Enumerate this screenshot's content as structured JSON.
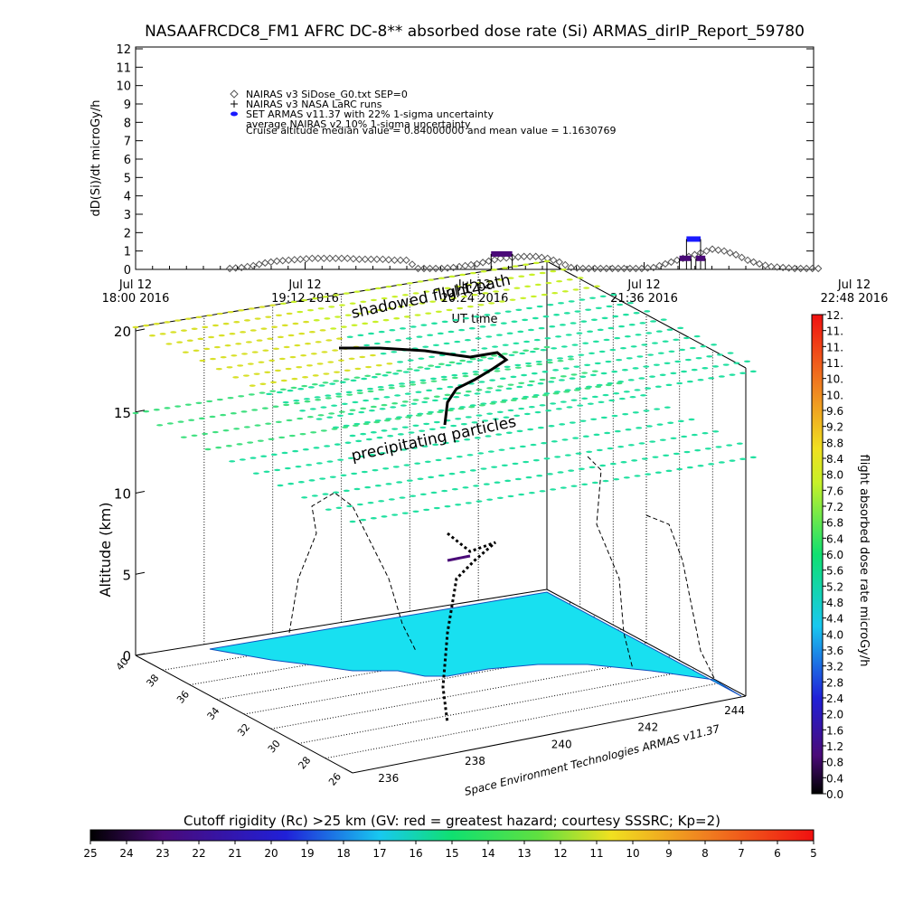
{
  "title": "NASAAFRCDC8_FM1 AFRC DC-8** absorbed dose rate (Si) ARMAS_dirIP_Report_59780",
  "chart_data": [
    {
      "type": "line",
      "panel": "top time series",
      "ylabel": "dD(Si)/dt microGy/h",
      "xlabel": "UT time",
      "ylim": [
        0,
        12
      ],
      "y_ticks": [
        "0",
        "1",
        "2",
        "3",
        "4",
        "5",
        "6",
        "7",
        "8",
        "9",
        "10",
        "11",
        "12"
      ],
      "x_ticks": [
        {
          "line1": "Jul 12",
          "line2": "18:00 2016"
        },
        {
          "line1": "Jul 12",
          "line2": "19:12 2016"
        },
        {
          "line1": "Jul 12",
          "line2": "20:24 2016"
        },
        {
          "line1": "Jul 12",
          "line2": "21:36 2016"
        },
        {
          "line1": "Jul 12",
          "line2": "22:48 2016"
        }
      ],
      "legend": [
        {
          "label": "NAIRAS v3 SiDose_G0.txt SEP=0",
          "symbol": "diamond",
          "color": "#555555"
        },
        {
          "label": "NAIRAS v3 NASA LaRC runs",
          "symbol": "plus",
          "color": "#000000"
        },
        {
          "label": "SET ARMAS v11.37 with 22% 1-sigma uncertainty",
          "symbol": "dot",
          "color": "#1a1aff"
        },
        {
          "label": "average NAIRAS v2 10% 1-sigma uncertainty",
          "symbol": "none",
          "color": "#000000"
        }
      ],
      "annotation": "Cruise altitude median value = 0.84000000 and mean value = 1.1630769",
      "series": [
        {
          "name": "NAIRAS v3 SiDose_G0.txt SEP=0",
          "x_minutes_after_1800": [
            40,
            45,
            50,
            55,
            60,
            65,
            70,
            75,
            80,
            85,
            90,
            95,
            100,
            105,
            110,
            115,
            120,
            125,
            130,
            135,
            140,
            145,
            150,
            155,
            160,
            165,
            170,
            175,
            180,
            185,
            190,
            195,
            200,
            205,
            210,
            215,
            220,
            225,
            230,
            235,
            240,
            245,
            250,
            255,
            260,
            265,
            270,
            275,
            280,
            285,
            290
          ],
          "values": [
            0.05,
            0.1,
            0.2,
            0.35,
            0.45,
            0.5,
            0.55,
            0.6,
            0.6,
            0.6,
            0.6,
            0.55,
            0.55,
            0.55,
            0.5,
            0.5,
            0.05,
            0.05,
            0.05,
            0.1,
            0.2,
            0.3,
            0.45,
            0.6,
            0.65,
            0.7,
            0.7,
            0.6,
            0.4,
            0.1,
            0.05,
            0.05,
            0.05,
            0.05,
            0.05,
            0.05,
            0.1,
            0.3,
            0.5,
            0.7,
            0.9,
            1.1,
            1.0,
            0.8,
            0.5,
            0.3,
            0.15,
            0.1,
            0.05,
            0.05,
            0.05
          ]
        },
        {
          "name": "SET ARMAS v11.37 with 22% 1-sigma uncertainty",
          "segments": [
            {
              "x_start": 151,
              "x_end": 160,
              "value": 0.84
            },
            {
              "x_start": 234,
              "x_end": 240,
              "value": 1.65
            },
            {
              "x_start": 231,
              "x_end": 236,
              "value": 0.6
            },
            {
              "x_start": 238,
              "x_end": 242,
              "value": 0.6
            }
          ]
        }
      ]
    },
    {
      "type": "scatter",
      "panel": "3D flight path with cutoff rigidity",
      "zlabel": "Altitude (km)",
      "z_ticks": [
        "0",
        "5",
        "10",
        "15",
        "20"
      ],
      "lat_ticks": [
        "40",
        "38",
        "36",
        "34",
        "32",
        "30",
        "28",
        "26"
      ],
      "lon_ticks": [
        "236",
        "238",
        "240",
        "242",
        "244"
      ],
      "annotations": [
        "shadowed flight path",
        "precipitating particles",
        "Jul 12"
      ],
      "credit": "Space Environment Technologies ARMAS v11.37"
    }
  ],
  "colorbar_right": {
    "label": "flight absorbed dose rate microGy/h",
    "ticks": [
      "0.0",
      "0.4",
      "0.8",
      "1.2",
      "1.6",
      "2.0",
      "2.4",
      "2.8",
      "3.2",
      "3.6",
      "4.0",
      "4.4",
      "4.8",
      "5.2",
      "5.6",
      "6.0",
      "6.4",
      "6.8",
      "7.2",
      "7.6",
      "8.0",
      "8.4",
      "8.8",
      "9.2",
      "9.6",
      "10.",
      "10.",
      "11.",
      "11.",
      "11.",
      "12."
    ]
  },
  "colorbar_bottom": {
    "label": "Cutoff rigidity (Rc) >25 km (GV: red = greatest hazard; courtesy SSSRC; Kp=2)",
    "ticks": [
      "25",
      "24",
      "23",
      "22",
      "21",
      "20",
      "19",
      "18",
      "17",
      "16",
      "15",
      "14",
      "13",
      "12",
      "11",
      "10",
      "9",
      "8",
      "7",
      "6",
      "5"
    ]
  }
}
